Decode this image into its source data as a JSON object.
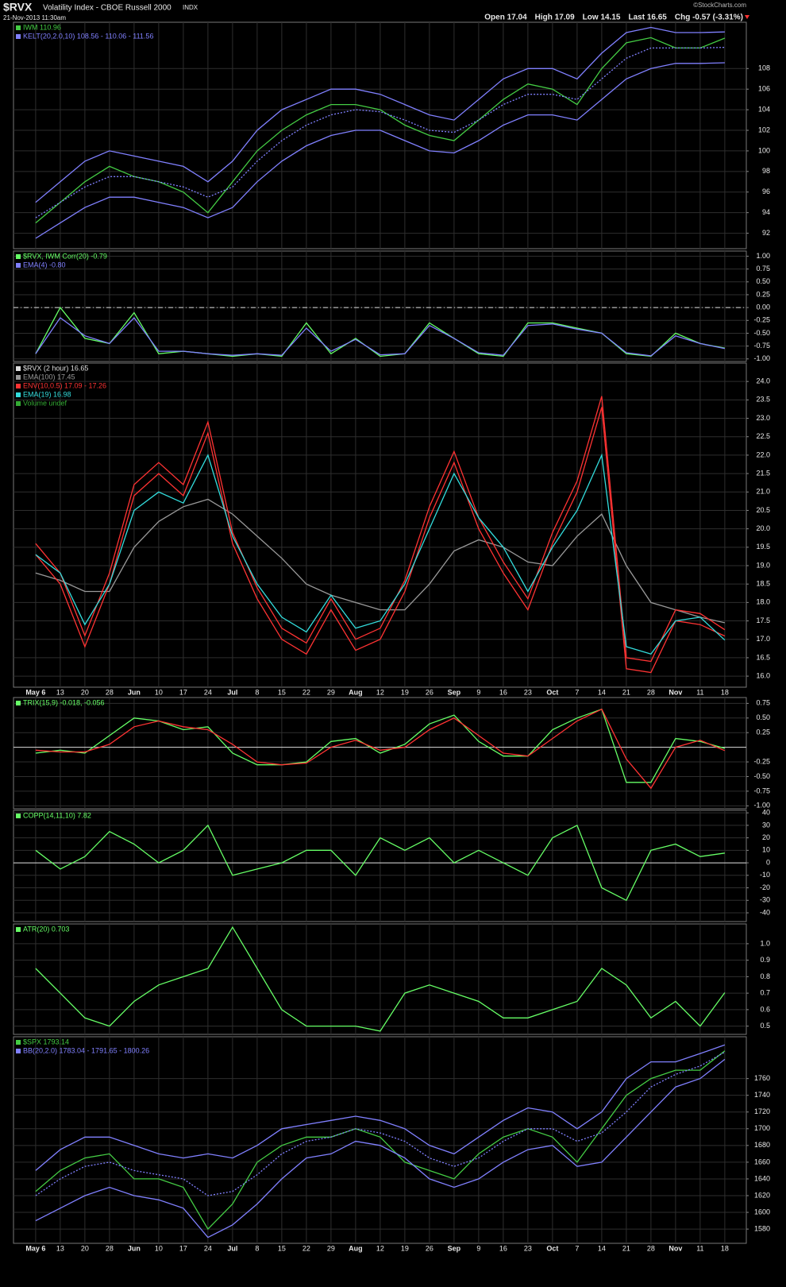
{
  "header": {
    "symbol": "$RVX",
    "title": "Volatility Index - CBOE Russell 2000",
    "exchange": "INDX",
    "date": "21-Nov-2013 11:30am",
    "quote": [
      "Open 17.04",
      "High 17.09",
      "Low 14.15",
      "Last 16.65",
      "Chg -0.57 (-3.31%)"
    ],
    "watermark": "©StockCharts.com"
  },
  "chart_data": [
    {
      "type": "line",
      "ylim": [
        90.5,
        112.5
      ],
      "yticks": [
        92,
        94,
        96,
        98,
        100,
        102,
        104,
        106,
        108
      ],
      "grid": true,
      "series": [
        {
          "name": "IWM 110.96",
          "color": "#44cc44",
          "values": [
            93,
            95,
            97,
            98.5,
            97.5,
            97,
            96,
            94,
            97,
            100,
            102,
            103.5,
            104.5,
            104.5,
            104,
            102.5,
            101.5,
            101,
            103,
            105,
            106.5,
            106,
            104.5,
            108,
            110.5,
            111,
            110,
            110,
            110.96
          ]
        },
        {
          "name": "KELT(20,2.0,10) 108.56 - 110.06 - 111.56",
          "color": "#8080ff",
          "bands": {
            "upper": [
              95,
              97,
              99,
              100,
              99.5,
              99,
              98.5,
              97,
              99,
              102,
              104,
              105,
              106,
              106,
              105.5,
              104.5,
              103.5,
              103,
              105,
              107,
              108,
              108,
              107,
              109.5,
              111.5,
              112,
              111.5,
              111.5,
              111.56
            ],
            "middle": [
              93.5,
              95,
              96.5,
              97.5,
              97.5,
              97,
              96.5,
              95.5,
              96.5,
              99,
              101,
              102.5,
              103.5,
              104,
              103.8,
              103,
              102,
              101.8,
              103,
              104.5,
              105.5,
              105.5,
              105,
              107,
              109,
              110,
              110,
              110,
              110.06
            ],
            "lower": [
              91.5,
              93,
              94.5,
              95.5,
              95.5,
              95,
              94.5,
              93.5,
              94.5,
              97,
              99,
              100.5,
              101.5,
              102,
              102,
              101,
              100,
              99.8,
              101,
              102.5,
              103.5,
              103.5,
              103,
              105,
              107,
              108,
              108.5,
              108.5,
              108.56
            ]
          }
        }
      ]
    },
    {
      "type": "line",
      "ylim": [
        -1.05,
        1.1
      ],
      "grid": true,
      "ref_line": 0,
      "ref_dash": true,
      "yticks": [
        {
          "value": 1,
          "label": "1.00"
        },
        0.75,
        {
          "value": 0.5,
          "label": "0.50"
        },
        0.25,
        {
          "value": 0,
          "label": "0.00"
        },
        -0.25,
        {
          "value": -0.5,
          "label": "-0.50"
        },
        -0.75,
        {
          "value": -1,
          "label": "-1.00"
        }
      ],
      "series": [
        {
          "name": "$RVX, IWM Corr(20) -0.79",
          "color": "#66ff66",
          "values": [
            -0.9,
            0.0,
            -0.6,
            -0.7,
            -0.1,
            -0.9,
            -0.85,
            -0.9,
            -0.95,
            -0.9,
            -0.95,
            -0.3,
            -0.9,
            -0.6,
            -0.95,
            -0.9,
            -0.3,
            -0.6,
            -0.9,
            -0.95,
            -0.3,
            -0.3,
            -0.4,
            -0.5,
            -0.9,
            -0.95,
            -0.5,
            -0.7,
            -0.79
          ]
        },
        {
          "name": "EMA(4) -0.80",
          "color": "#8080ff",
          "values": [
            -0.9,
            -0.2,
            -0.55,
            -0.7,
            -0.2,
            -0.85,
            -0.85,
            -0.9,
            -0.93,
            -0.9,
            -0.93,
            -0.4,
            -0.85,
            -0.62,
            -0.92,
            -0.9,
            -0.35,
            -0.6,
            -0.88,
            -0.93,
            -0.35,
            -0.32,
            -0.42,
            -0.5,
            -0.88,
            -0.94,
            -0.55,
            -0.7,
            -0.8
          ]
        }
      ]
    },
    {
      "type": "line",
      "ylim": [
        15.7,
        24.5
      ],
      "grid": true,
      "yticks": [
        {
          "value": 16,
          "label": "16.0"
        },
        16.5,
        {
          "value": 17,
          "label": "17.0"
        },
        17.5,
        {
          "value": 18,
          "label": "18.0"
        },
        18.5,
        {
          "value": 19,
          "label": "19.0"
        },
        19.5,
        {
          "value": 20,
          "label": "20.0"
        },
        20.5,
        {
          "value": 21,
          "label": "21.0"
        },
        21.5,
        {
          "value": 22,
          "label": "22.0"
        },
        22.5,
        {
          "value": 23,
          "label": "23.0"
        },
        23.5,
        {
          "value": 24,
          "label": "24.0"
        }
      ],
      "categories": [
        "May 6",
        "13",
        "20",
        "28",
        "Jun",
        "10",
        "17",
        "24",
        "Jul",
        "8",
        "15",
        "22",
        "29",
        "Aug",
        "12",
        "19",
        "26",
        "Sep",
        "9",
        "16",
        "23",
        "Oct",
        "7",
        "14",
        "21",
        "28",
        "Nov",
        "11",
        "18"
      ],
      "series": [
        {
          "name": "$RVX (2 hour) 16.65",
          "color": "#dddddd"
        },
        {
          "name": "EMA(100) 17.45",
          "color": "#999999",
          "values": [
            18.8,
            18.6,
            18.3,
            18.3,
            19.5,
            20.2,
            20.6,
            20.8,
            20.4,
            19.8,
            19.2,
            18.5,
            18.2,
            18.0,
            17.8,
            17.8,
            18.5,
            19.4,
            19.7,
            19.5,
            19.1,
            19.0,
            19.8,
            20.4,
            19.0,
            18.0,
            17.8,
            17.6,
            17.45
          ]
        },
        {
          "name": "ENV(10,0.5) 17.09 - 17.26",
          "color": "#ff3333",
          "bands": {
            "upper": [
              19.6,
              18.8,
              17.1,
              18.8,
              21.2,
              21.8,
              21.2,
              22.9,
              19.9,
              18.4,
              17.3,
              16.9,
              18.1,
              17.0,
              17.3,
              18.6,
              20.6,
              22.1,
              20.3,
              19.1,
              18.1,
              19.9,
              21.3,
              23.6,
              16.5,
              16.4,
              17.8,
              17.7,
              17.26
            ],
            "lower": [
              19.3,
              18.5,
              16.8,
              18.5,
              20.9,
              21.5,
              20.9,
              22.6,
              19.6,
              18.1,
              17.0,
              16.6,
              17.8,
              16.7,
              17.0,
              18.3,
              20.3,
              21.8,
              20.0,
              18.8,
              17.8,
              19.6,
              21.0,
              23.3,
              16.2,
              16.1,
              17.5,
              17.4,
              17.09
            ]
          }
        },
        {
          "name": "EMA(19) 16.98",
          "color": "#33dddd",
          "values": [
            19.3,
            18.8,
            17.4,
            18.5,
            20.5,
            21.0,
            20.7,
            22.0,
            19.8,
            18.5,
            17.6,
            17.2,
            18.2,
            17.3,
            17.5,
            18.5,
            20.0,
            21.5,
            20.3,
            19.5,
            18.3,
            19.5,
            20.5,
            22.0,
            16.8,
            16.6,
            17.5,
            17.6,
            16.98
          ]
        },
        {
          "name": "Volume undef",
          "color": "#33aa33"
        }
      ]
    },
    {
      "type": "line",
      "ylim": [
        -1.05,
        0.85
      ],
      "grid": true,
      "ref_line": 0,
      "yticks": [
        0.75,
        {
          "value": 0.5,
          "label": "0.50"
        },
        0.25,
        -0.25,
        {
          "value": -0.5,
          "label": "-0.50"
        },
        -0.75,
        {
          "value": -1,
          "label": "-1.00"
        }
      ],
      "series": [
        {
          "name": "TRIX(15,9) -0.018, -0.056",
          "color": "#66ff66",
          "values": [
            -0.1,
            -0.05,
            -0.1,
            0.2,
            0.5,
            0.45,
            0.3,
            0.35,
            -0.1,
            -0.3,
            -0.3,
            -0.25,
            0.1,
            0.15,
            -0.1,
            0.05,
            0.4,
            0.55,
            0.1,
            -0.15,
            -0.15,
            0.3,
            0.5,
            0.65,
            -0.6,
            -0.6,
            0.15,
            0.1,
            -0.018
          ]
        },
        {
          "color": "#ff3333",
          "values": [
            -0.05,
            -0.08,
            -0.08,
            0.05,
            0.35,
            0.45,
            0.35,
            0.3,
            0.05,
            -0.25,
            -0.3,
            -0.27,
            0.0,
            0.12,
            -0.05,
            0.0,
            0.3,
            0.5,
            0.2,
            -0.1,
            -0.15,
            0.15,
            0.45,
            0.65,
            -0.2,
            -0.7,
            0.0,
            0.12,
            -0.056
          ]
        }
      ]
    },
    {
      "type": "line",
      "ylim": [
        -47,
        42
      ],
      "grid": true,
      "ref_line": 0,
      "yticks": [
        40,
        30,
        20,
        10,
        0,
        -10,
        -20,
        -30,
        -40
      ],
      "series": [
        {
          "name": "COPP(14,11,10) 7.82",
          "color": "#66ff66",
          "values": [
            10,
            -5,
            5,
            25,
            15,
            0,
            10,
            30,
            -10,
            -5,
            0,
            10,
            10,
            -10,
            20,
            10,
            20,
            0,
            10,
            0,
            -10,
            20,
            30,
            -20,
            -30,
            10,
            15,
            5,
            7.82
          ]
        }
      ]
    },
    {
      "type": "line",
      "ylim": [
        0.45,
        1.12
      ],
      "grid": true,
      "yticks": [
        {
          "value": 1,
          "label": "1.0"
        },
        0.9,
        0.8,
        0.7,
        0.6,
        0.5
      ],
      "series": [
        {
          "name": "ATR(20) 0.703",
          "color": "#66ff66",
          "values": [
            0.85,
            0.7,
            0.55,
            0.5,
            0.65,
            0.75,
            0.8,
            0.85,
            1.1,
            0.85,
            0.6,
            0.5,
            0.5,
            0.5,
            0.47,
            0.7,
            0.75,
            0.7,
            0.65,
            0.55,
            0.55,
            0.6,
            0.65,
            0.85,
            0.75,
            0.55,
            0.65,
            0.5,
            0.703
          ]
        }
      ]
    },
    {
      "type": "line",
      "ylim": [
        1563,
        1810
      ],
      "grid": true,
      "yticks": [
        1580,
        1600,
        1620,
        1640,
        1660,
        1680,
        1700,
        1720,
        1740,
        1760
      ],
      "categories": [
        "May 6",
        "13",
        "20",
        "28",
        "Jun",
        "10",
        "17",
        "24",
        "Jul",
        "8",
        "15",
        "22",
        "29",
        "Aug",
        "12",
        "19",
        "26",
        "Sep",
        "9",
        "16",
        "23",
        "Oct",
        "7",
        "14",
        "21",
        "28",
        "Nov",
        "11",
        "18"
      ],
      "series": [
        {
          "name": "$SPX 1793.14",
          "color": "#44cc44",
          "values": [
            1625,
            1650,
            1665,
            1670,
            1640,
            1640,
            1630,
            1580,
            1610,
            1660,
            1680,
            1690,
            1690,
            1700,
            1690,
            1660,
            1650,
            1640,
            1670,
            1690,
            1700,
            1690,
            1660,
            1700,
            1740,
            1760,
            1770,
            1770,
            1793.14
          ]
        },
        {
          "name": "BB(20,2.0) 1783.04 - 1791.65 - 1800.26",
          "color": "#8080ff",
          "bands": {
            "upper": [
              1650,
              1675,
              1690,
              1690,
              1680,
              1670,
              1665,
              1670,
              1665,
              1680,
              1700,
              1705,
              1710,
              1715,
              1710,
              1700,
              1680,
              1670,
              1690,
              1710,
              1725,
              1720,
              1700,
              1720,
              1760,
              1780,
              1780,
              1790,
              1800.26
            ],
            "middle": [
              1620,
              1640,
              1655,
              1660,
              1650,
              1645,
              1640,
              1620,
              1625,
              1645,
              1670,
              1685,
              1690,
              1700,
              1695,
              1685,
              1665,
              1655,
              1665,
              1685,
              1700,
              1700,
              1685,
              1695,
              1720,
              1750,
              1765,
              1775,
              1791.65
            ],
            "lower": [
              1590,
              1605,
              1620,
              1630,
              1620,
              1615,
              1605,
              1570,
              1585,
              1610,
              1640,
              1665,
              1670,
              1685,
              1680,
              1665,
              1640,
              1630,
              1640,
              1660,
              1675,
              1680,
              1655,
              1660,
              1690,
              1720,
              1750,
              1760,
              1783.04
            ]
          }
        }
      ]
    }
  ]
}
